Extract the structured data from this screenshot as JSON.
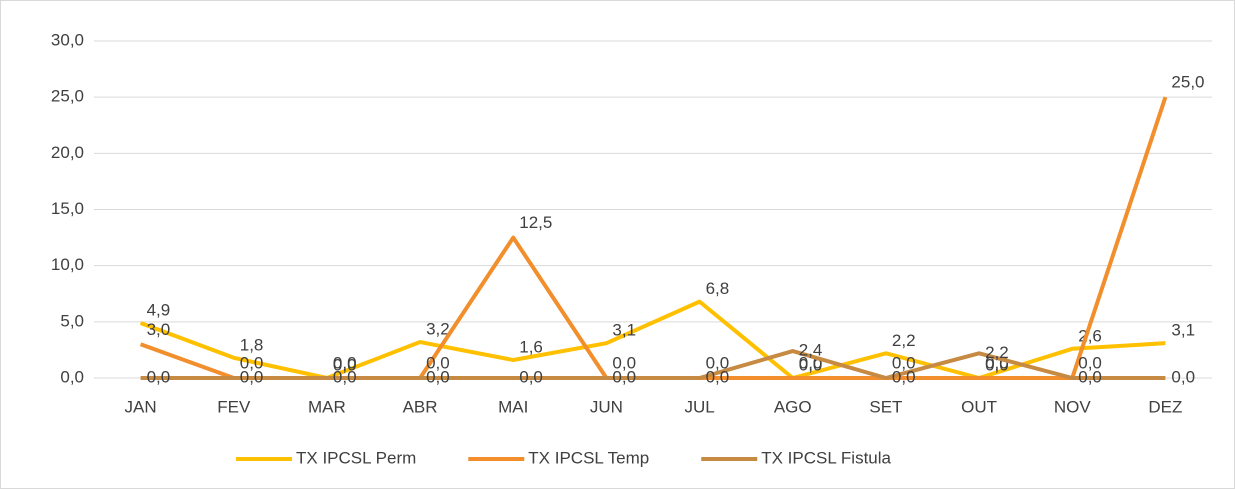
{
  "chart_data": {
    "type": "line",
    "categories": [
      "JAN",
      "FEV",
      "MAR",
      "ABR",
      "MAI",
      "JUN",
      "JUL",
      "AGO",
      "SET",
      "OUT",
      "NOV",
      "DEZ"
    ],
    "series": [
      {
        "name": "TX IPCSL Perm",
        "color": "#FFC000",
        "values": [
          4.9,
          1.8,
          0.0,
          3.2,
          1.6,
          3.1,
          6.8,
          0.0,
          2.2,
          0.0,
          2.6,
          3.1
        ],
        "value_labels": [
          "4,9",
          "1,8",
          "0,0",
          "3,2",
          "1,6",
          "3,1",
          "6,8",
          "0,0",
          "2,2",
          "0,0",
          "2,6",
          "3,1"
        ]
      },
      {
        "name": "TX IPCSL Temp",
        "color": "#F28E2B",
        "values": [
          3.0,
          0.0,
          0.0,
          0.0,
          12.5,
          0.0,
          0.0,
          0.0,
          0.0,
          0.0,
          0.0,
          25.0
        ],
        "value_labels": [
          "3,0",
          "0,0",
          "0,0",
          "0,0",
          "12,5",
          "0,0",
          "0,0",
          "0,0",
          "0,0",
          "0,0",
          "0,0",
          "25,0"
        ]
      },
      {
        "name": "TX IPCSL Fistula",
        "color": "#C68A43",
        "values": [
          0.0,
          0.0,
          0.0,
          0.0,
          0.0,
          0.0,
          0.0,
          2.4,
          0.0,
          2.2,
          0.0,
          0.0
        ],
        "value_labels": [
          "0,0",
          "0,0",
          "0,0",
          "0,0",
          "0,0",
          "0,0",
          "0,0",
          "2,4",
          "0,0",
          "2,2",
          "0,0",
          "0,0"
        ]
      }
    ],
    "ylim": [
      0,
      30
    ],
    "yticks": [
      {
        "value": 0,
        "label": "0,0"
      },
      {
        "value": 5,
        "label": "5,0"
      },
      {
        "value": 10,
        "label": "10,0"
      },
      {
        "value": 15,
        "label": "15,0"
      },
      {
        "value": 20,
        "label": "20,0"
      },
      {
        "value": 25,
        "label": "25,0"
      },
      {
        "value": 30,
        "label": "30,0"
      }
    ],
    "grid": true,
    "legend": "bottom"
  }
}
